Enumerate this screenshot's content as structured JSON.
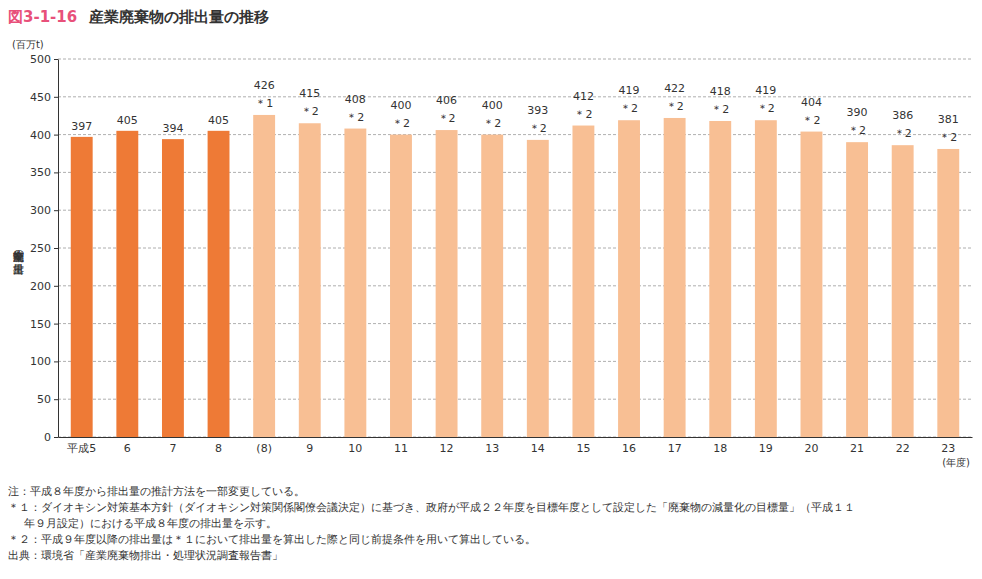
{
  "chart_data": {
    "type": "bar",
    "figure_number": "図3-1-16",
    "title": "産業廃棄物の排出量の推移",
    "y_unit": "(百万t)",
    "y_label": "産業廃棄物の排出量",
    "x_unit": "(年度)",
    "categories": [
      "平成5",
      "6",
      "7",
      "8",
      "(8)",
      "9",
      "10",
      "11",
      "12",
      "13",
      "14",
      "15",
      "16",
      "17",
      "18",
      "19",
      "20",
      "21",
      "22",
      "23"
    ],
    "values": [
      397,
      405,
      394,
      405,
      426,
      415,
      408,
      400,
      406,
      400,
      393,
      412,
      419,
      422,
      418,
      419,
      404,
      390,
      386,
      381
    ],
    "annotations": [
      null,
      null,
      null,
      null,
      "＊1",
      "＊2",
      "＊2",
      "＊2",
      "＊2",
      "＊2",
      "＊2",
      "＊2",
      "＊2",
      "＊2",
      "＊2",
      "＊2",
      "＊2",
      "＊2",
      "＊2",
      "＊2"
    ],
    "colors": [
      "#ee7a36",
      "#ee7a36",
      "#ee7a36",
      "#ee7a36",
      "#f8bf94",
      "#f8bf94",
      "#f8bf94",
      "#f8bf94",
      "#f8bf94",
      "#f8bf94",
      "#f8bf94",
      "#f8bf94",
      "#f8bf94",
      "#f8bf94",
      "#f8bf94",
      "#f8bf94",
      "#f8bf94",
      "#f8bf94",
      "#f8bf94",
      "#f8bf94"
    ],
    "ylim": [
      0,
      500
    ],
    "yticks": [
      0,
      50,
      100,
      150,
      200,
      250,
      300,
      350,
      400,
      450,
      500
    ],
    "grid": true,
    "data_labels": true,
    "notes": [
      [
        "注：平成８年度から排出量の推計方法を一部変更している。"
      ],
      [
        "＊１：ダイオキシン対策基本方針（ダイオキシン対策関係閣僚会議決定）に基づき、政府が平成２２年度を目標年度として設定した「廃棄物の減量化の目標量」（平成１１",
        "年９月設定）における平成８年度の排出量を示す。"
      ],
      [
        "＊２：平成９年度以降の排出量は＊１において排出量を算出した際と同じ前提条件を用いて算出している。"
      ],
      [
        "出典：環境省「産業廃棄物排出・処理状況調査報告書」"
      ]
    ]
  }
}
